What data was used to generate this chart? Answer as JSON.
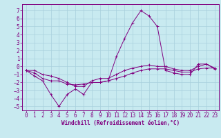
{
  "background_color": "#c8eaf0",
  "grid_color": "#a8d0dc",
  "line_color": "#800080",
  "xlabel": "Windchill (Refroidissement éolien,°C)",
  "xlim": [
    -0.5,
    23.5
  ],
  "ylim": [
    -5.5,
    7.8
  ],
  "yticks": [
    -5,
    -4,
    -3,
    -2,
    -1,
    0,
    1,
    2,
    3,
    4,
    5,
    6,
    7
  ],
  "xticks": [
    0,
    1,
    2,
    3,
    4,
    5,
    6,
    7,
    8,
    9,
    10,
    11,
    12,
    13,
    14,
    15,
    16,
    17,
    18,
    19,
    20,
    21,
    22,
    23
  ],
  "line1_x": [
    0,
    1,
    2,
    3,
    4,
    5,
    6,
    7,
    8,
    9,
    10,
    11,
    12,
    13,
    14,
    15,
    16,
    17,
    18,
    19,
    20,
    21,
    22,
    23
  ],
  "line1_y": [
    -0.5,
    -1.2,
    -1.8,
    -3.5,
    -5.0,
    -3.5,
    -2.8,
    -3.5,
    -2.0,
    -2.0,
    -1.8,
    1.2,
    3.5,
    5.5,
    7.0,
    6.3,
    5.0,
    -0.5,
    -0.8,
    -1.0,
    -1.0,
    0.3,
    0.3,
    -0.3
  ],
  "line2_x": [
    0,
    1,
    2,
    3,
    4,
    5,
    6,
    7,
    8,
    9,
    10,
    11,
    12,
    13,
    14,
    15,
    16,
    17,
    18,
    19,
    20,
    21,
    22,
    23
  ],
  "line2_y": [
    -0.5,
    -0.8,
    -1.5,
    -1.8,
    -1.8,
    -2.2,
    -2.3,
    -2.2,
    -2.0,
    -2.0,
    -1.8,
    -1.5,
    -1.2,
    -0.8,
    -0.5,
    -0.3,
    -0.3,
    -0.3,
    -0.5,
    -0.7,
    -0.7,
    -0.3,
    -0.2,
    -0.2
  ],
  "line3_x": [
    0,
    1,
    2,
    3,
    4,
    5,
    6,
    7,
    8,
    9,
    10,
    11,
    12,
    13,
    14,
    15,
    16,
    17,
    18,
    19,
    20,
    21,
    22,
    23
  ],
  "line3_y": [
    -0.5,
    -0.5,
    -1.0,
    -1.2,
    -1.5,
    -2.0,
    -2.5,
    -2.5,
    -1.8,
    -1.5,
    -1.5,
    -1.0,
    -0.5,
    -0.2,
    0.0,
    0.2,
    0.0,
    0.0,
    -0.3,
    -0.5,
    -0.5,
    0.0,
    0.3,
    -0.2
  ],
  "tick_fontsize": 5.5,
  "xlabel_fontsize": 5.5,
  "linewidth": 0.7,
  "markersize": 2.5
}
